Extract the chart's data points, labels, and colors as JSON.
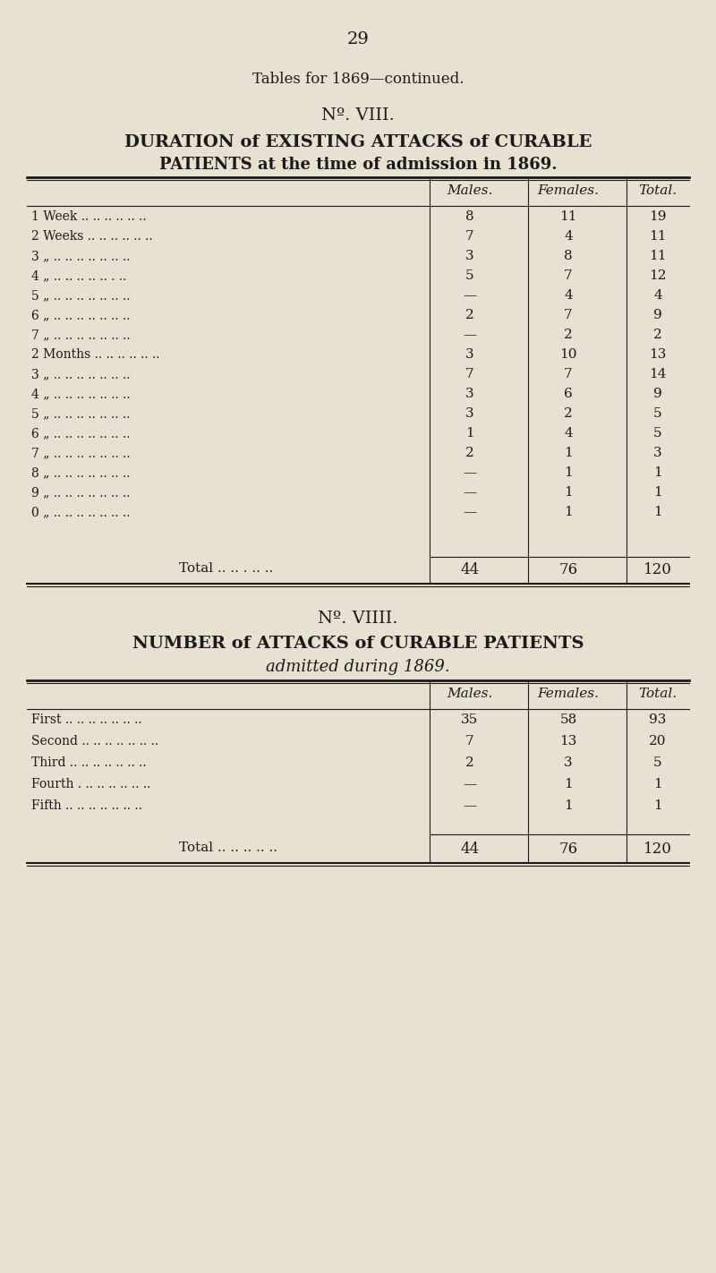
{
  "bg_color": "#e8e0d0",
  "text_color": "#1a1a1a",
  "page_number": "29",
  "header_line1": "Tables for 1869—continued.",
  "table1_num": "Nº. VIII.",
  "table1_title1": "DURATION of EXISTING ATTACKS of CURABLE",
  "table1_title2": "PATIENTS at the time of admission in 1869.",
  "table1_col_headers": [
    "Males.",
    "Females.",
    "Total."
  ],
  "table1_rows": [
    [
      "1 Week .. .. .. .. .. ..",
      "8",
      "11",
      "19"
    ],
    [
      "2 Weeks .. .. .. .. .. ..",
      "7",
      "4",
      "11"
    ],
    [
      "3 „ .. .. .. .. .. .. ..",
      "3",
      "8",
      "11"
    ],
    [
      "4 „ .. .. .. .. .. . ..",
      "5",
      "7",
      "12"
    ],
    [
      "5 „ .. .. .. .. .. .. ..",
      "—",
      "4",
      "4"
    ],
    [
      "6 „ .. .. .. .. .. .. ..",
      "2",
      "7",
      "9"
    ],
    [
      "7 „ .. .. .. .. .. .. ..",
      "—",
      "2",
      "2"
    ],
    [
      "2 Months .. .. .. .. .. ..",
      "3",
      "10",
      "13"
    ],
    [
      "3 „ .. .. .. .. .. .. ..",
      "7",
      "7",
      "14"
    ],
    [
      "4 „ .. .. .. .. .. .. ..",
      "3",
      "6",
      "9"
    ],
    [
      "5 „ .. .. .. .. .. .. ..",
      "3",
      "2",
      "5"
    ],
    [
      "6 „ .. .. .. .. .. .. ..",
      "1",
      "4",
      "5"
    ],
    [
      "7 „ .. .. .. .. .. .. ..",
      "2",
      "1",
      "3"
    ],
    [
      "8 „ .. .. .. .. .. .. ..",
      "—",
      "1",
      "1"
    ],
    [
      "9 „ .. .. .. .. .. .. ..",
      "—",
      "1",
      "1"
    ],
    [
      "0 „ .. .. .. .. .. .. ..",
      "—",
      "1",
      "1"
    ]
  ],
  "table1_total": [
    "44",
    "76",
    "120"
  ],
  "table2_num": "Nº. VIIII.",
  "table2_title1": "NUMBER of ATTACKS of CURABLE PATIENTS",
  "table2_title2": "admitted during 1869.",
  "table2_col_headers": [
    "Males.",
    "Females.",
    "Total."
  ],
  "table2_rows": [
    [
      "First .. .. .. .. .. .. ..",
      "35",
      "58",
      "93"
    ],
    [
      "Second .. .. .. .. .. .. ..",
      "7",
      "13",
      "20"
    ],
    [
      "Third .. .. .. .. .. .. ..",
      "2",
      "3",
      "5"
    ],
    [
      "Fourth . .. .. .. .. .. ..",
      "—",
      "1",
      "1"
    ],
    [
      "Fifth .. .. .. .. .. .. ..",
      "—",
      "1",
      "1"
    ]
  ],
  "table2_total": [
    "44",
    "76",
    "120"
  ]
}
